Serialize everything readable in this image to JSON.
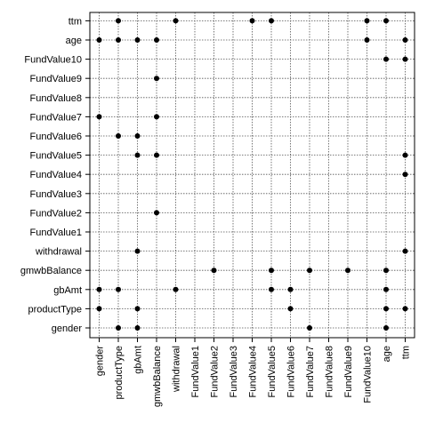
{
  "chart_data": {
    "type": "scatter",
    "title": "",
    "xlabel": "",
    "ylabel": "",
    "grid": true,
    "x_categories": [
      "gender",
      "productType",
      "gbAmt",
      "gmwbBalance",
      "withdrawal",
      "FundValue1",
      "FundValue2",
      "FundValue3",
      "FundValue4",
      "FundValue5",
      "FundValue6",
      "FundValue7",
      "FundValue8",
      "FundValue9",
      "FundValue10",
      "age",
      "ttm"
    ],
    "y_categories": [
      "gender",
      "productType",
      "gbAmt",
      "gmwbBalance",
      "withdrawal",
      "FundValue1",
      "FundValue2",
      "FundValue3",
      "FundValue4",
      "FundValue5",
      "FundValue6",
      "FundValue7",
      "FundValue8",
      "FundValue9",
      "FundValue10",
      "age",
      "ttm"
    ],
    "points": [
      {
        "x": "productType",
        "y": "ttm"
      },
      {
        "x": "withdrawal",
        "y": "ttm"
      },
      {
        "x": "FundValue4",
        "y": "ttm"
      },
      {
        "x": "FundValue5",
        "y": "ttm"
      },
      {
        "x": "FundValue10",
        "y": "ttm"
      },
      {
        "x": "age",
        "y": "ttm"
      },
      {
        "x": "gender",
        "y": "age"
      },
      {
        "x": "productType",
        "y": "age"
      },
      {
        "x": "gbAmt",
        "y": "age"
      },
      {
        "x": "gmwbBalance",
        "y": "age"
      },
      {
        "x": "FundValue10",
        "y": "age"
      },
      {
        "x": "ttm",
        "y": "age"
      },
      {
        "x": "age",
        "y": "FundValue10"
      },
      {
        "x": "ttm",
        "y": "FundValue10"
      },
      {
        "x": "gmwbBalance",
        "y": "FundValue9"
      },
      {
        "x": "gender",
        "y": "FundValue7"
      },
      {
        "x": "gmwbBalance",
        "y": "FundValue7"
      },
      {
        "x": "productType",
        "y": "FundValue6"
      },
      {
        "x": "gbAmt",
        "y": "FundValue6"
      },
      {
        "x": "gbAmt",
        "y": "FundValue5"
      },
      {
        "x": "gmwbBalance",
        "y": "FundValue5"
      },
      {
        "x": "ttm",
        "y": "FundValue5"
      },
      {
        "x": "ttm",
        "y": "FundValue4"
      },
      {
        "x": "gmwbBalance",
        "y": "FundValue2"
      },
      {
        "x": "gbAmt",
        "y": "withdrawal"
      },
      {
        "x": "ttm",
        "y": "withdrawal"
      },
      {
        "x": "FundValue2",
        "y": "gmwbBalance"
      },
      {
        "x": "FundValue5",
        "y": "gmwbBalance"
      },
      {
        "x": "FundValue7",
        "y": "gmwbBalance"
      },
      {
        "x": "FundValue9",
        "y": "gmwbBalance"
      },
      {
        "x": "age",
        "y": "gmwbBalance"
      },
      {
        "x": "gender",
        "y": "gbAmt"
      },
      {
        "x": "productType",
        "y": "gbAmt"
      },
      {
        "x": "withdrawal",
        "y": "gbAmt"
      },
      {
        "x": "FundValue5",
        "y": "gbAmt"
      },
      {
        "x": "FundValue6",
        "y": "gbAmt"
      },
      {
        "x": "age",
        "y": "gbAmt"
      },
      {
        "x": "gender",
        "y": "productType"
      },
      {
        "x": "gbAmt",
        "y": "productType"
      },
      {
        "x": "FundValue6",
        "y": "productType"
      },
      {
        "x": "age",
        "y": "productType"
      },
      {
        "x": "ttm",
        "y": "productType"
      },
      {
        "x": "productType",
        "y": "gender"
      },
      {
        "x": "gbAmt",
        "y": "gender"
      },
      {
        "x": "FundValue7",
        "y": "gender"
      },
      {
        "x": "age",
        "y": "gender"
      }
    ]
  }
}
